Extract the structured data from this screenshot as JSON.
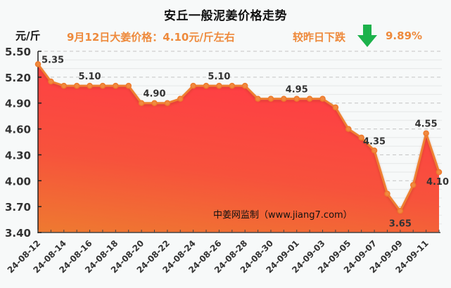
{
  "header": {
    "title": "安丘一般泥姜价格走势",
    "unit": "元/斤",
    "headline": "9月12日大姜价格：4.10元/斤左右",
    "change_label": "较昨日下跌",
    "change_icon": "arrow-down-icon",
    "change_value": "9.89%"
  },
  "watermark": "中姜网监制（www.jiang7.com）",
  "colors": {
    "line": "#ee8030",
    "fill_top": "#ff3d45",
    "fill_bottom": "#ee7a30",
    "arrow": "#1cb24b",
    "accent_text": "#ee8a3c",
    "grid": "#c8c8c8"
  },
  "chart_data": {
    "type": "area",
    "title": "安丘一般泥姜价格走势",
    "ylabel": "元/斤",
    "xlabel": "",
    "ylim": [
      3.4,
      5.5
    ],
    "yticks": [
      "5.50",
      "5.20",
      "4.90",
      "4.60",
      "4.30",
      "4.00",
      "3.70",
      "3.40"
    ],
    "grid": true,
    "legend": "none",
    "x": [
      "24-08-12",
      "24-08-13",
      "24-08-14",
      "24-08-15",
      "24-08-16",
      "24-08-17",
      "24-08-18",
      "24-08-19",
      "24-08-20",
      "24-08-21",
      "24-08-22",
      "24-08-23",
      "24-08-24",
      "24-08-25",
      "24-08-26",
      "24-08-27",
      "24-08-28",
      "24-08-29",
      "24-08-30",
      "24-08-31",
      "24-09-01",
      "24-09-02",
      "24-09-03",
      "24-09-04",
      "24-09-05",
      "24-09-06",
      "24-09-07",
      "24-09-08",
      "24-09-09",
      "24-09-10",
      "24-09-11",
      "24-09-12"
    ],
    "xtick_labels": [
      "24-08-12",
      "24-08-14",
      "24-08-16",
      "24-08-18",
      "24-08-20",
      "24-08-22",
      "24-08-24",
      "24-08-26",
      "24-08-28",
      "24-08-30",
      "24-09-01",
      "24-09-03",
      "24-09-05",
      "24-09-07",
      "24-09-09",
      "24-09-11"
    ],
    "series": [
      {
        "name": "安丘一般泥姜价格",
        "values": [
          5.35,
          5.15,
          5.1,
          5.1,
          5.1,
          5.1,
          5.1,
          5.1,
          4.9,
          4.9,
          4.9,
          4.95,
          5.1,
          5.1,
          5.1,
          5.1,
          5.1,
          4.95,
          4.95,
          4.95,
          4.95,
          4.95,
          4.95,
          4.85,
          4.6,
          4.5,
          4.35,
          3.85,
          3.65,
          3.95,
          4.55,
          4.1
        ]
      }
    ],
    "annotations": [
      {
        "index": 0,
        "text": "5.35",
        "pos": "right"
      },
      {
        "index": 4,
        "text": "5.10",
        "pos": "above"
      },
      {
        "index": 9,
        "text": "4.90",
        "pos": "above"
      },
      {
        "index": 14,
        "text": "5.10",
        "pos": "above"
      },
      {
        "index": 20,
        "text": "4.95",
        "pos": "above"
      },
      {
        "index": 26,
        "text": "4.35",
        "pos": "above"
      },
      {
        "index": 28,
        "text": "3.65",
        "pos": "below"
      },
      {
        "index": 30,
        "text": "4.55",
        "pos": "above"
      },
      {
        "index": 31,
        "text": "4.10",
        "pos": "below"
      }
    ]
  }
}
